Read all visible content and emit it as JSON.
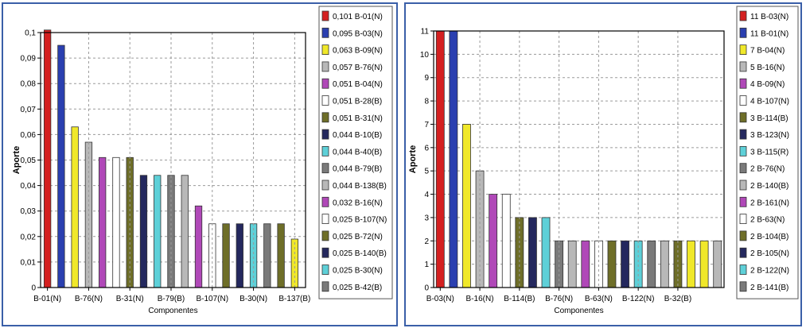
{
  "chart_data": [
    {
      "type": "bar",
      "ylabel": "Aporte",
      "xlabel": "Componentes",
      "ylim": [
        0,
        0.1
      ],
      "yticks": [
        "0",
        "0,01",
        "0,02",
        "0,03",
        "0,04",
        "0,05",
        "0,06",
        "0,07",
        "0,08",
        "0,09",
        "0,1"
      ],
      "xtick_labels": [
        "B-01(N)",
        "B-76(N)",
        "B-31(N)",
        "B-79(B)",
        "B-107(N)",
        "B-30(N)",
        "B-137(B)"
      ],
      "xtick_indices": [
        0,
        3,
        6,
        9,
        12,
        15,
        18
      ],
      "grid": true,
      "legend_position": "right",
      "bars": [
        {
          "legend": "0,101 B-01(N)",
          "value": 0.101,
          "color": "#d42020"
        },
        {
          "legend": "0,095 B-03(N)",
          "value": 0.095,
          "color": "#2a3fb0"
        },
        {
          "legend": "0,063 B-09(N)",
          "value": 0.063,
          "color": "#f0e82a"
        },
        {
          "legend": "0,057 B-76(N)",
          "value": 0.057,
          "color": "#b8b8b8"
        },
        {
          "legend": "0,051 B-04(N)",
          "value": 0.051,
          "color": "#b048b8"
        },
        {
          "legend": "0,051 B-28(B)",
          "value": 0.051,
          "color": "#ffffff"
        },
        {
          "legend": "0,051 B-31(N)",
          "value": 0.051,
          "color": "#6e6e28"
        },
        {
          "legend": "0,044 B-10(B)",
          "value": 0.044,
          "color": "#24285e"
        },
        {
          "legend": "0,044 B-40(B)",
          "value": 0.044,
          "color": "#5ed0d8"
        },
        {
          "legend": "0,044 B-79(B)",
          "value": 0.044,
          "color": "#7a7a7a"
        },
        {
          "legend": "0,044 B-138(B)",
          "value": 0.044,
          "color": "#b8b8b8"
        },
        {
          "legend": "0,032 B-16(N)",
          "value": 0.032,
          "color": "#b048b8"
        },
        {
          "legend": "0,025 B-107(N)",
          "value": 0.025,
          "color": "#ffffff"
        },
        {
          "legend": "0,025 B-72(N)",
          "value": 0.025,
          "color": "#6e6e28"
        },
        {
          "legend": "0,025 B-140(B)",
          "value": 0.025,
          "color": "#24285e"
        },
        {
          "legend": "0,025 B-30(N)",
          "value": 0.025,
          "color": "#5ed0d8"
        },
        {
          "legend": "0,025 B-42(B)",
          "value": 0.025,
          "color": "#7a7a7a"
        },
        {
          "legend": "",
          "value": 0.025,
          "color": "#6e6e28"
        },
        {
          "legend": "",
          "value": 0.019,
          "color": "#f0e82a"
        }
      ]
    },
    {
      "type": "bar",
      "ylabel": "Aporte",
      "xlabel": "Componentes",
      "ylim": [
        0,
        11
      ],
      "yticks": [
        "0",
        "1",
        "2",
        "3",
        "4",
        "5",
        "6",
        "7",
        "8",
        "9",
        "10",
        "11"
      ],
      "xtick_labels": [
        "B-03(N)",
        "B-16(N)",
        "B-114(B)",
        "B-76(N)",
        "B-63(N)",
        "B-122(N)",
        "B-32(B)"
      ],
      "xtick_indices": [
        0,
        3,
        6,
        9,
        12,
        15,
        18
      ],
      "grid": true,
      "legend_position": "right",
      "bars": [
        {
          "legend": "11 B-03(N)",
          "value": 11,
          "color": "#d42020"
        },
        {
          "legend": "11 B-01(N)",
          "value": 11,
          "color": "#2a3fb0"
        },
        {
          "legend": "7 B-04(N)",
          "value": 7,
          "color": "#f0e82a"
        },
        {
          "legend": "5 B-16(N)",
          "value": 5,
          "color": "#b8b8b8"
        },
        {
          "legend": "4 B-09(N)",
          "value": 4,
          "color": "#b048b8"
        },
        {
          "legend": "4 B-107(N)",
          "value": 4,
          "color": "#ffffff"
        },
        {
          "legend": "3 B-114(B)",
          "value": 3,
          "color": "#6e6e28"
        },
        {
          "legend": "3 B-123(N)",
          "value": 3,
          "color": "#24285e"
        },
        {
          "legend": "3 B-115(R)",
          "value": 3,
          "color": "#5ed0d8"
        },
        {
          "legend": "2 B-76(N)",
          "value": 2,
          "color": "#7a7a7a"
        },
        {
          "legend": "2 B-140(B)",
          "value": 2,
          "color": "#b8b8b8"
        },
        {
          "legend": "2 B-161(N)",
          "value": 2,
          "color": "#b048b8"
        },
        {
          "legend": "2 B-63(N)",
          "value": 2,
          "color": "#ffffff"
        },
        {
          "legend": "2 B-104(B)",
          "value": 2,
          "color": "#6e6e28"
        },
        {
          "legend": "2 B-105(N)",
          "value": 2,
          "color": "#24285e"
        },
        {
          "legend": "2 B-122(N)",
          "value": 2,
          "color": "#5ed0d8"
        },
        {
          "legend": "2 B-141(B)",
          "value": 2,
          "color": "#7a7a7a"
        },
        {
          "legend": "",
          "value": 2,
          "color": "#b8b8b8"
        },
        {
          "legend": "",
          "value": 2,
          "color": "#6e6e28"
        },
        {
          "legend": "",
          "value": 2,
          "color": "#f0e82a"
        },
        {
          "legend": "",
          "value": 2,
          "color": "#f0e82a"
        },
        {
          "legend": "",
          "value": 2,
          "color": "#b8b8b8"
        }
      ]
    }
  ]
}
